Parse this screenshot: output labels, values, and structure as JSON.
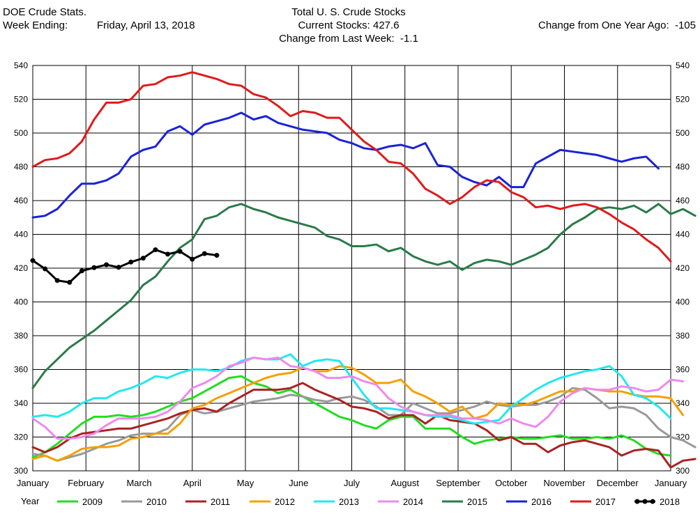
{
  "header": {
    "source": "DOE Crude Stats.",
    "week_label": "Week Ending:",
    "week_date": "Friday, April 13, 2018",
    "title": "Total U. S. Crude Stocks",
    "current_stocks": "Current Stocks: 427.6",
    "change_week": "Change from Last Week:  -1.1",
    "change_year": "Change from One Year Ago:  -105"
  },
  "chart_data": {
    "type": "line",
    "ylim": [
      300,
      540
    ],
    "yticks": [
      300,
      320,
      340,
      360,
      380,
      400,
      420,
      440,
      460,
      480,
      500,
      520,
      540
    ],
    "xlim": [
      0,
      52
    ],
    "month_labels": [
      "January",
      "February",
      "March",
      "April",
      "May",
      "June",
      "July",
      "August",
      "September",
      "October",
      "November",
      "December",
      "January"
    ],
    "legend_title": "Year",
    "grid": true,
    "legend_position": "bottom",
    "series": [
      {
        "name": "2009",
        "color": "#22dd22",
        "values": [
          308,
          311,
          316,
          322,
          328,
          332,
          332,
          333,
          332,
          333,
          335,
          338,
          341,
          343,
          347,
          351,
          355,
          356,
          352,
          350,
          346,
          348,
          344,
          340,
          336,
          332,
          330,
          327,
          325,
          330,
          332,
          332,
          325,
          325,
          325,
          320,
          316,
          318,
          319,
          320,
          319,
          319,
          320,
          321,
          319,
          319,
          320,
          319,
          321,
          318,
          313,
          310,
          309
        ]
      },
      {
        "name": "2010",
        "color": "#999999",
        "values": [
          310,
          309,
          306,
          308,
          310,
          313,
          316,
          318,
          321,
          322,
          322,
          325,
          333,
          336,
          334,
          335,
          337,
          339,
          341,
          342,
          343,
          345,
          344,
          342,
          341,
          343,
          344,
          342,
          338,
          333,
          333,
          340,
          337,
          334,
          334,
          336,
          338,
          341,
          339,
          338,
          339,
          339,
          341,
          344,
          349,
          348,
          343,
          337,
          338,
          337,
          333,
          325,
          320,
          318,
          314
        ]
      },
      {
        "name": "2011",
        "color": "#aa2222",
        "values": [
          314,
          311,
          314,
          319,
          322,
          323,
          324,
          325,
          325,
          327,
          329,
          331,
          334,
          336,
          337,
          335,
          340,
          344,
          348,
          348,
          348,
          349,
          352,
          348,
          345,
          342,
          338,
          337,
          335,
          331,
          333,
          333,
          328,
          333,
          330,
          329,
          328,
          324,
          318,
          320,
          316,
          316,
          311,
          315,
          317,
          318,
          316,
          314,
          309,
          312,
          313,
          312,
          302,
          306,
          307
        ]
      },
      {
        "name": "2012",
        "color": "#f5a000",
        "values": [
          307,
          309,
          306,
          309,
          313,
          314,
          314,
          315,
          319,
          320,
          322,
          322,
          328,
          337,
          339,
          343,
          346,
          349,
          352,
          355,
          357,
          358,
          361,
          359,
          359,
          362,
          361,
          357,
          352,
          352,
          354,
          347,
          344,
          340,
          335,
          338,
          331,
          333,
          340,
          339,
          339,
          341,
          344,
          347,
          347,
          349,
          348,
          347,
          347,
          345,
          344,
          344,
          343,
          333
        ]
      },
      {
        "name": "2013",
        "color": "#22e8ee",
        "values": [
          332,
          333,
          332,
          335,
          340,
          343,
          343,
          347,
          349,
          352,
          356,
          355,
          358,
          360,
          360,
          359,
          361,
          365,
          367,
          366,
          366,
          369,
          362,
          365,
          366,
          365,
          355,
          345,
          337,
          337,
          336,
          335,
          333,
          332,
          332,
          330,
          328,
          329,
          330,
          338,
          343,
          348,
          352,
          355,
          357,
          359,
          360,
          362,
          356,
          345,
          343,
          338,
          331
        ]
      },
      {
        "name": "2014",
        "color": "#ee88ee",
        "values": [
          331,
          326,
          319,
          319,
          320,
          322,
          327,
          331,
          331,
          331,
          332,
          335,
          341,
          349,
          352,
          356,
          362,
          364,
          367,
          366,
          367,
          362,
          361,
          359,
          355,
          355,
          356,
          353,
          351,
          343,
          338,
          335,
          333,
          333,
          333,
          331,
          331,
          330,
          328,
          331,
          328,
          326,
          332,
          341,
          346,
          349,
          348,
          348,
          350,
          349,
          347,
          348,
          354,
          353
        ]
      },
      {
        "name": "2015",
        "color": "#2a7a4a",
        "values": [
          349,
          359,
          366,
          373,
          378,
          383,
          389,
          395,
          401,
          410,
          415,
          424,
          432,
          437,
          449,
          451,
          456,
          458,
          455,
          453,
          450,
          448,
          446,
          444,
          439,
          437,
          433,
          433,
          434,
          430,
          432,
          427,
          424,
          422,
          424,
          419,
          423,
          425,
          424,
          422,
          425,
          428,
          432,
          440,
          446,
          450,
          455,
          456,
          455,
          457,
          453,
          458,
          452,
          455,
          451
        ]
      },
      {
        "name": "2016",
        "color": "#1a22d8",
        "values": [
          450,
          451,
          455,
          463,
          470,
          470,
          472,
          476,
          486,
          490,
          492,
          501,
          504,
          499,
          505,
          507,
          509,
          512,
          508,
          510,
          506,
          504,
          502,
          501,
          500,
          496,
          494,
          491,
          490,
          492,
          493,
          491,
          494,
          481,
          480,
          474,
          471,
          469,
          474,
          468,
          468,
          482,
          486,
          490,
          489,
          488,
          487,
          485,
          483,
          485,
          486,
          479
        ]
      },
      {
        "name": "2017",
        "color": "#e01a1a",
        "values": [
          480,
          484,
          485,
          488,
          495,
          508,
          518,
          518,
          520,
          528,
          529,
          533,
          534,
          536,
          534,
          532,
          529,
          528,
          523,
          521,
          516,
          510,
          513,
          512,
          509,
          509,
          502,
          495,
          490,
          483,
          482,
          476,
          467,
          463,
          458,
          462,
          468,
          472,
          471,
          465,
          462,
          456,
          457,
          455,
          457,
          458,
          456,
          452,
          447,
          443,
          437,
          432,
          424
        ]
      },
      {
        "name": "2018",
        "color": "#000000",
        "values": [
          424.5,
          419.6,
          412.7,
          411.6,
          418.4,
          420.3,
          422.0,
          420.5,
          423.6,
          425.9,
          430.9,
          428.3,
          429.9,
          425.3,
          428.6,
          427.6
        ]
      }
    ]
  }
}
